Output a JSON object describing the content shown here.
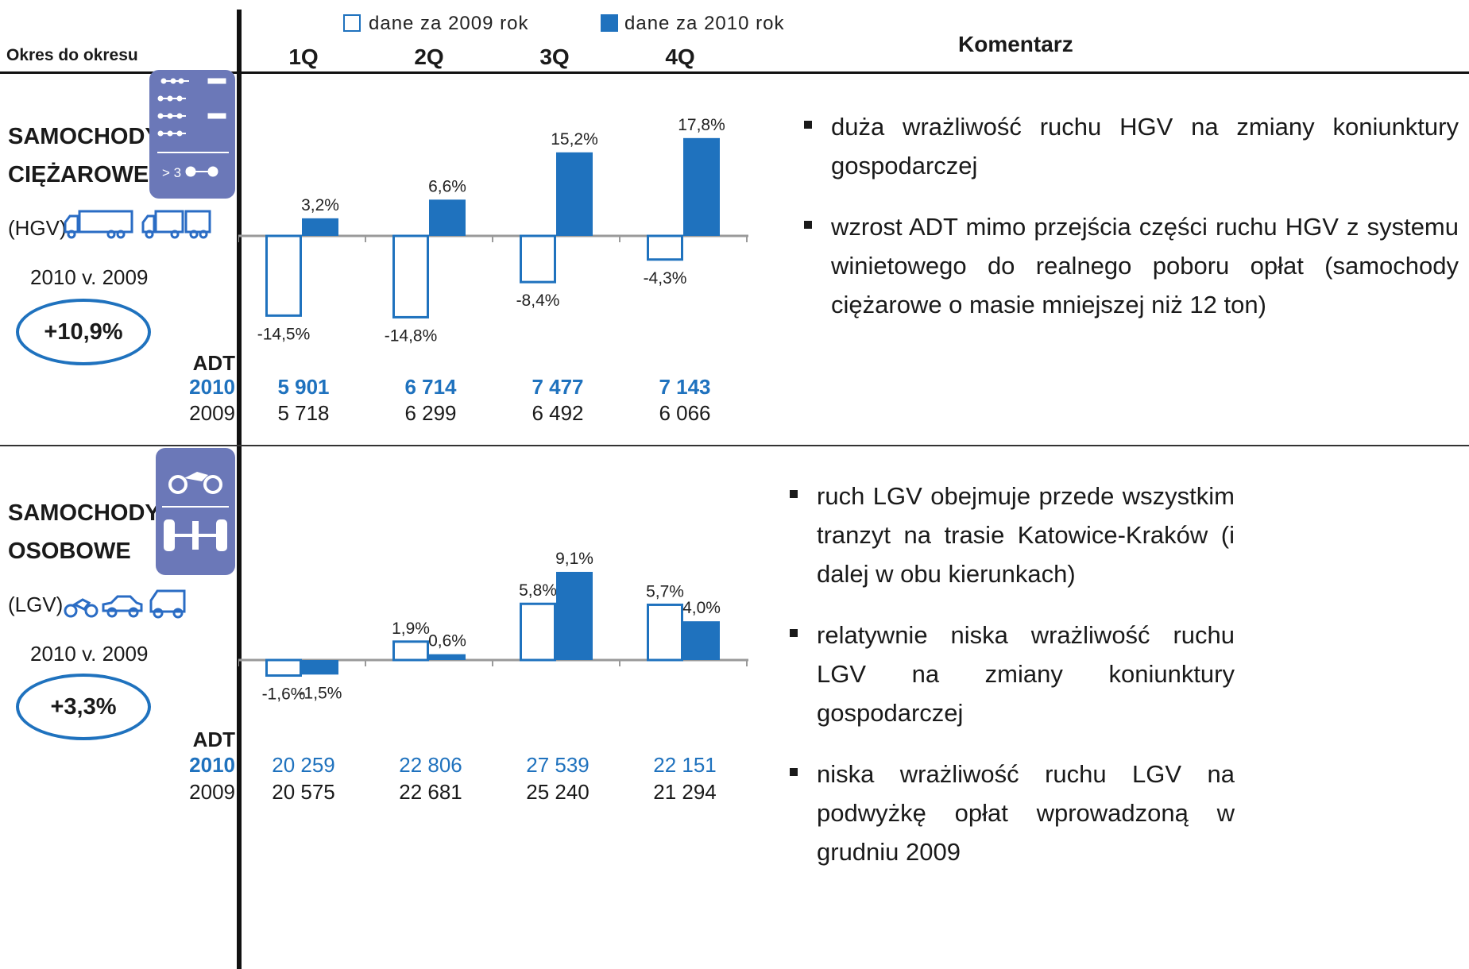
{
  "legend": {
    "item_2009": "dane za 2009 rok",
    "item_2010": "dane za 2010 rok"
  },
  "header": {
    "period_label": "Okres do okresu",
    "comment_label": "Komentarz"
  },
  "quarters": [
    "1Q",
    "2Q",
    "3Q",
    "4Q"
  ],
  "colors": {
    "series_2010": "#1f72be",
    "series_2009_outline": "#1f72be",
    "axis": "#9a9a9a",
    "icon_box": "#6b78b8"
  },
  "hgv": {
    "title_line1": "SAMOCHODY",
    "title_line2": "CIĘŻAROWE",
    "abbr": "(HGV)",
    "comparison_label": "2010 v. 2009",
    "change": "+10,9%",
    "icon_box_text": "> 3",
    "adt_label": "ADT",
    "row_2010_label": "2010",
    "row_2009_label": "2009",
    "adt_2010": [
      "5 901",
      "6 714",
      "7 477",
      "7 143"
    ],
    "adt_2009": [
      "5 718",
      "6 299",
      "6 492",
      "6 066"
    ],
    "comments": [
      "duża wrażliwość ruchu HGV na zmiany koniunktury gospodarczej",
      "wzrost  ADT mimo przejścia części ruchu HGV z systemu winietowego do realnego poboru opłat (samochody ciężarowe o masie mniejszej niż 12 ton)"
    ]
  },
  "lgv": {
    "title_line1": "SAMOCHODY",
    "title_line2": "OSOBOWE",
    "abbr": "(LGV)",
    "comparison_label": "2010 v. 2009",
    "change": "+3,3%",
    "adt_label": "ADT",
    "row_2010_label": "2010",
    "row_2009_label": "2009",
    "adt_2010": [
      "20 259",
      "22 806",
      "27 539",
      "22 151"
    ],
    "adt_2009": [
      "20 575",
      "22 681",
      "25 240",
      "21 294"
    ],
    "comments": [
      "ruch LGV obejmuje przede wszystkim tranzyt na trasie Katowice-Kraków (i dalej w obu kierunkach)",
      "relatywnie niska wrażliwość ruchu LGV na zmiany koniunktury gospodarczej",
      "niska wrażliwość ruchu LGV na podwyżkę opłat wprowadzoną w grudniu 2009"
    ]
  },
  "chart_data": [
    {
      "type": "bar",
      "categories": [
        "1Q",
        "2Q",
        "3Q",
        "4Q"
      ],
      "series": [
        {
          "name": "dane za 2009 rok",
          "values": [
            -14.5,
            -14.8,
            -8.4,
            -4.3
          ],
          "labels": [
            "-14,5%",
            "-14,8%",
            "-8,4%",
            "-4,3%"
          ]
        },
        {
          "name": "dane za 2010 rok",
          "values": [
            3.2,
            6.6,
            15.2,
            17.8
          ],
          "labels": [
            "3,2%",
            "6,6%",
            "15,2%",
            "17,8%"
          ]
        }
      ]
    },
    {
      "type": "bar",
      "categories": [
        "1Q",
        "2Q",
        "3Q",
        "4Q"
      ],
      "series": [
        {
          "name": "dane za 2009 rok",
          "values": [
            -1.6,
            1.9,
            5.8,
            5.7
          ],
          "labels": [
            "-1,6%",
            "1,9%",
            "5,8%",
            "5,7%"
          ]
        },
        {
          "name": "dane za 2010 rok",
          "values": [
            -1.5,
            0.6,
            9.1,
            4.0
          ],
          "labels": [
            "-1,5%",
            "0,6%",
            "9,1%",
            "4,0%"
          ]
        }
      ]
    }
  ]
}
